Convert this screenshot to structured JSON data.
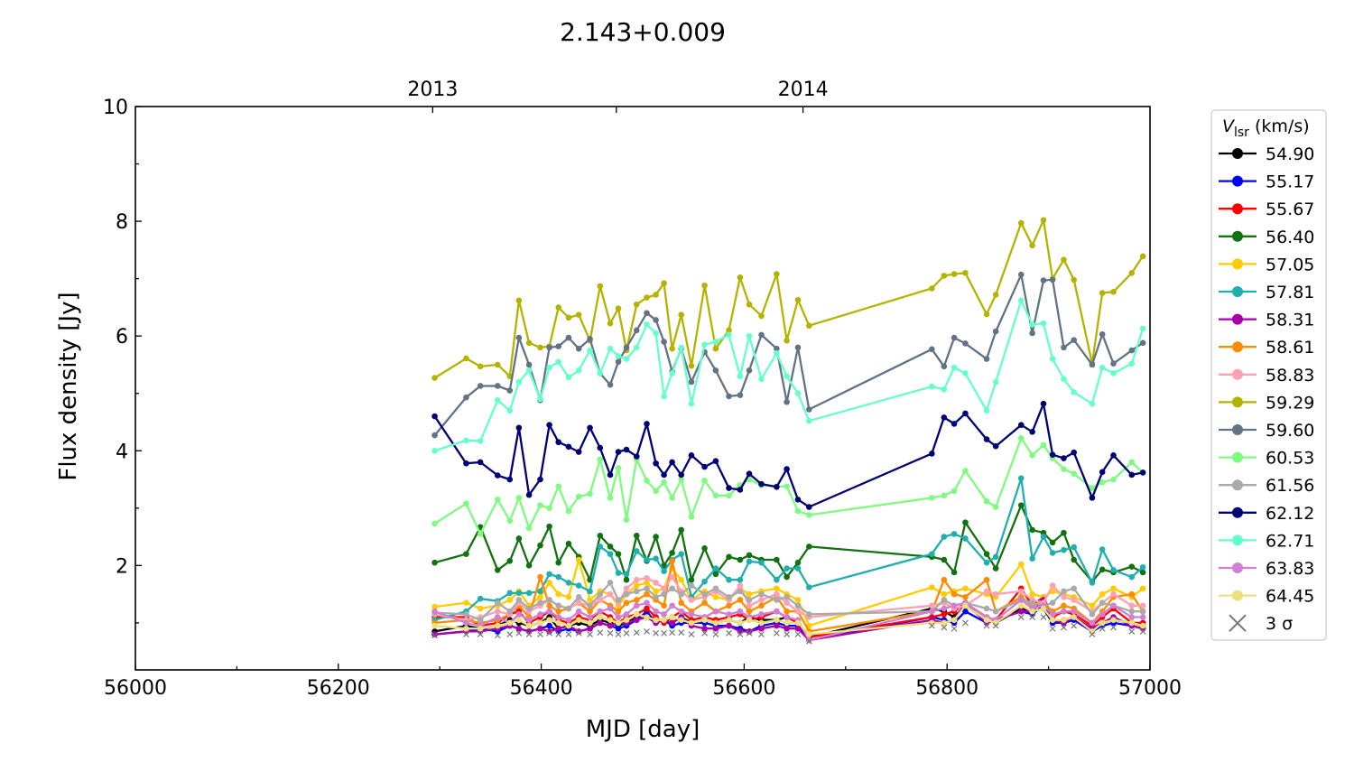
{
  "chart_data": {
    "type": "line",
    "title": "2.143+0.009",
    "xlabel": "MJD [day]",
    "ylabel": "Flux density [Jy]",
    "xlim": [
      56000,
      57000
    ],
    "ylim": [
      0.18,
      10
    ],
    "xticks": [
      56000,
      56200,
      56400,
      56600,
      56800,
      57000
    ],
    "xtick_labels": [
      "56000",
      "56200",
      "56400",
      "56600",
      "56800",
      "57000"
    ],
    "yticks": [
      2,
      4,
      6,
      8,
      10
    ],
    "ytick_labels": [
      "2",
      "4",
      "6",
      "8",
      "10"
    ],
    "top_axis": {
      "ticks": [
        56293,
        56474,
        56658
      ],
      "labels": [
        "2013",
        "",
        "2014"
      ]
    },
    "grid": false,
    "legend": {
      "title_main": "V",
      "title_sub": "lsr",
      "title_rest": " (km/s)",
      "placement": "outside-right"
    },
    "x": [
      56295,
      56326,
      56340,
      56357,
      56369,
      56378,
      56388,
      56399,
      56408,
      56417,
      56427,
      56437,
      56448,
      56458,
      56468,
      56476,
      56484,
      56494,
      56504,
      56513,
      56521,
      56529,
      56538,
      56548,
      56561,
      56572,
      56585,
      56596,
      56605,
      56617,
      56632,
      56642,
      56653,
      56664,
      56785,
      56797,
      56807,
      56818,
      56839,
      56848,
      56873,
      56884,
      56895,
      56904,
      56915,
      56925,
      56943,
      56953,
      56964,
      56982,
      56993
    ],
    "series": [
      {
        "name": "54.90",
        "color": "#000000",
        "values": [
          0.85,
          0.95,
          0.9,
          0.95,
          1.05,
          1.0,
          0.95,
          1.0,
          1.1,
          0.9,
          0.95,
          1.0,
          0.95,
          1.05,
          1.0,
          0.95,
          1.0,
          1.1,
          1.15,
          1.05,
          1.05,
          1.0,
          1.1,
          1.0,
          1.05,
          1.0,
          1.05,
          1.0,
          1.1,
          1.05,
          1.05,
          1.1,
          1.0,
          0.75,
          1.25,
          1.2,
          1.1,
          1.3,
          1.05,
          1.0,
          1.25,
          1.2,
          1.25,
          1.0,
          1.05,
          1.1,
          0.9,
          1.0,
          1.05,
          1.0,
          0.95
        ]
      },
      {
        "name": "55.17",
        "color": "#0000ff",
        "values": [
          0.8,
          0.85,
          0.9,
          0.85,
          0.95,
          0.9,
          0.85,
          0.9,
          0.95,
          0.85,
          0.9,
          0.85,
          0.9,
          1.0,
          0.95,
          0.9,
          0.95,
          1.05,
          1.2,
          1.0,
          1.05,
          0.95,
          1.0,
          1.0,
          1.0,
          0.95,
          0.95,
          0.9,
          0.85,
          0.95,
          1.0,
          0.95,
          0.95,
          0.7,
          1.1,
          1.05,
          1.0,
          1.2,
          1.0,
          1.05,
          1.2,
          1.15,
          1.3,
          1.0,
          1.0,
          1.05,
          0.85,
          0.95,
          1.0,
          0.95,
          0.9
        ]
      },
      {
        "name": "55.67",
        "color": "#ff0000",
        "values": [
          1.1,
          1.1,
          0.95,
          1.0,
          1.15,
          1.2,
          1.0,
          1.1,
          1.2,
          1.05,
          1.0,
          1.1,
          1.05,
          1.2,
          1.1,
          1.0,
          1.1,
          1.15,
          1.25,
          1.1,
          1.0,
          1.1,
          1.2,
          1.05,
          1.1,
          1.05,
          1.1,
          1.15,
          1.05,
          1.1,
          1.2,
          1.1,
          1.0,
          0.75,
          1.1,
          1.15,
          1.2,
          1.35,
          1.1,
          1.05,
          1.6,
          1.3,
          1.45,
          1.1,
          1.2,
          1.15,
          0.95,
          1.1,
          1.25,
          1.0,
          1.0
        ]
      },
      {
        "name": "56.40",
        "color": "#127212",
        "values": [
          2.05,
          2.2,
          2.67,
          1.92,
          2.08,
          2.47,
          2.0,
          2.35,
          2.68,
          2.05,
          2.38,
          2.15,
          1.75,
          2.52,
          2.33,
          2.2,
          1.75,
          2.52,
          2.08,
          2.5,
          2.0,
          2.22,
          2.62,
          1.75,
          2.3,
          1.85,
          2.15,
          2.1,
          2.18,
          2.1,
          2.1,
          1.8,
          2.05,
          2.33,
          2.15,
          2.1,
          1.88,
          2.75,
          2.2,
          1.95,
          3.05,
          2.62,
          2.57,
          2.4,
          2.57,
          2.1,
          1.72,
          1.93,
          1.88,
          1.98,
          1.88
        ]
      },
      {
        "name": "57.05",
        "color": "#ffcc00",
        "values": [
          1.28,
          1.35,
          1.25,
          1.3,
          1.4,
          1.55,
          1.3,
          1.45,
          1.7,
          1.5,
          1.45,
          2.1,
          1.4,
          1.55,
          1.5,
          1.3,
          1.5,
          1.65,
          1.7,
          1.55,
          1.6,
          1.95,
          1.75,
          1.4,
          1.55,
          1.45,
          1.4,
          1.6,
          1.5,
          1.55,
          1.6,
          1.5,
          1.4,
          0.95,
          1.62,
          1.5,
          1.55,
          1.6,
          1.5,
          1.45,
          2.02,
          1.5,
          1.45,
          1.55,
          1.5,
          1.45,
          1.3,
          1.5,
          1.6,
          1.45,
          1.6
        ]
      },
      {
        "name": "57.81",
        "color": "#1fb0ae",
        "values": [
          1.05,
          1.2,
          1.42,
          1.38,
          1.52,
          1.52,
          1.52,
          1.55,
          1.85,
          1.8,
          1.7,
          1.65,
          1.55,
          2.33,
          2.2,
          1.87,
          1.85,
          2.25,
          2.1,
          2.12,
          1.9,
          2.1,
          2.2,
          1.45,
          1.72,
          1.95,
          1.75,
          1.75,
          2.07,
          2.05,
          1.75,
          1.95,
          1.95,
          1.62,
          2.2,
          2.5,
          2.55,
          2.47,
          2.05,
          2.15,
          3.52,
          2.12,
          2.5,
          2.22,
          2.27,
          2.32,
          1.7,
          2.28,
          1.92,
          1.8,
          1.97
        ]
      },
      {
        "name": "58.31",
        "color": "#aa00aa",
        "values": [
          0.8,
          0.85,
          0.85,
          0.9,
          0.95,
          0.9,
          0.85,
          0.9,
          0.85,
          0.9,
          0.95,
          0.85,
          0.9,
          1.0,
          0.95,
          1.0,
          1.0,
          1.05,
          1.1,
          1.0,
          1.05,
          1.0,
          1.1,
          0.95,
          0.9,
          0.9,
          0.95,
          0.85,
          0.85,
          0.9,
          0.95,
          0.9,
          0.9,
          0.7,
          1.05,
          1.0,
          1.05,
          1.35,
          1.0,
          1.05,
          1.2,
          1.2,
          1.4,
          1.05,
          1.0,
          1.1,
          0.9,
          1.0,
          1.1,
          0.95,
          0.9
        ]
      },
      {
        "name": "58.61",
        "color": "#ff8c00",
        "values": [
          1.0,
          1.05,
          1.0,
          1.05,
          1.15,
          1.3,
          1.1,
          1.8,
          1.3,
          1.2,
          1.25,
          1.35,
          1.2,
          1.4,
          1.3,
          1.2,
          1.35,
          1.4,
          1.5,
          1.4,
          1.3,
          2.08,
          1.35,
          1.2,
          1.35,
          1.2,
          1.3,
          1.4,
          1.2,
          1.3,
          1.45,
          1.2,
          1.2,
          0.85,
          1.2,
          1.75,
          1.5,
          1.45,
          1.75,
          1.2,
          1.45,
          1.3,
          1.35,
          1.2,
          1.3,
          1.25,
          1.0,
          1.2,
          1.45,
          1.5,
          1.2
        ]
      },
      {
        "name": "58.83",
        "color": "#ffa0b4",
        "values": [
          1.15,
          1.05,
          1.1,
          1.2,
          1.15,
          1.35,
          1.2,
          1.3,
          1.4,
          1.3,
          1.25,
          1.35,
          1.3,
          1.4,
          1.5,
          1.35,
          1.6,
          1.75,
          1.78,
          1.7,
          1.6,
          1.8,
          1.55,
          1.4,
          1.45,
          1.55,
          1.4,
          1.65,
          1.3,
          1.4,
          1.5,
          1.35,
          1.2,
          1.1,
          1.3,
          1.35,
          1.25,
          1.3,
          1.55,
          1.5,
          1.55,
          1.4,
          1.35,
          1.65,
          1.45,
          1.4,
          1.2,
          1.35,
          1.5,
          1.3,
          1.3
        ]
      },
      {
        "name": "59.29",
        "color": "#b4b400",
        "values": [
          5.27,
          5.61,
          5.47,
          5.5,
          5.3,
          6.62,
          5.88,
          5.8,
          5.82,
          6.5,
          6.32,
          6.37,
          5.92,
          6.87,
          6.22,
          6.48,
          5.75,
          6.55,
          6.67,
          6.72,
          6.92,
          5.78,
          6.37,
          5.48,
          6.88,
          5.78,
          6.1,
          7.02,
          6.55,
          6.35,
          7.08,
          5.92,
          6.63,
          6.18,
          6.83,
          7.05,
          7.08,
          7.1,
          6.38,
          6.72,
          7.97,
          7.58,
          8.02,
          7.0,
          7.33,
          6.98,
          5.52,
          6.75,
          6.77,
          7.1,
          7.39
        ]
      },
      {
        "name": "59.60",
        "color": "#627386",
        "values": [
          4.27,
          4.93,
          5.13,
          5.13,
          5.05,
          5.97,
          5.5,
          4.88,
          5.8,
          5.82,
          5.97,
          5.78,
          5.95,
          5.35,
          5.15,
          5.55,
          5.8,
          6.1,
          6.4,
          6.28,
          5.9,
          5.38,
          5.78,
          5.2,
          5.72,
          5.4,
          4.95,
          4.97,
          5.4,
          6.02,
          5.78,
          4.85,
          5.8,
          4.72,
          5.77,
          5.47,
          5.97,
          5.87,
          5.6,
          6.08,
          7.07,
          6.05,
          6.97,
          6.98,
          5.8,
          5.93,
          5.5,
          6.03,
          5.52,
          5.75,
          5.88
        ]
      },
      {
        "name": "60.53",
        "color": "#80fa80",
        "values": [
          2.73,
          3.08,
          2.55,
          3.15,
          2.78,
          3.18,
          2.65,
          3.05,
          3.0,
          3.38,
          2.95,
          3.2,
          3.25,
          3.85,
          3.18,
          3.7,
          2.8,
          3.85,
          3.48,
          3.3,
          3.45,
          3.18,
          3.5,
          2.85,
          3.48,
          3.22,
          3.22,
          3.4,
          3.5,
          3.4,
          3.38,
          3.38,
          2.95,
          2.88,
          3.18,
          3.22,
          3.3,
          3.65,
          3.12,
          3.02,
          4.22,
          3.92,
          4.1,
          3.87,
          3.68,
          3.6,
          3.35,
          3.45,
          3.5,
          3.8,
          3.62
        ]
      },
      {
        "name": "61.56",
        "color": "#aaaaaa",
        "values": [
          1.18,
          1.15,
          1.05,
          1.35,
          1.2,
          1.4,
          1.25,
          1.35,
          1.4,
          1.3,
          1.25,
          1.45,
          1.3,
          1.5,
          1.7,
          1.4,
          1.5,
          1.55,
          1.6,
          1.45,
          1.5,
          1.6,
          1.5,
          1.65,
          1.5,
          1.6,
          1.45,
          1.55,
          1.4,
          1.5,
          1.4,
          1.45,
          1.3,
          1.15,
          1.2,
          1.4,
          1.3,
          1.35,
          1.25,
          1.2,
          1.4,
          1.35,
          1.3,
          1.35,
          1.55,
          1.6,
          1.15,
          1.35,
          1.3,
          1.2,
          1.2
        ]
      },
      {
        "name": "62.12",
        "color": "#000075",
        "values": [
          4.6,
          3.78,
          3.8,
          3.57,
          3.5,
          4.4,
          3.23,
          3.5,
          4.45,
          4.15,
          4.07,
          3.98,
          4.4,
          4.05,
          3.58,
          3.98,
          4.02,
          3.9,
          4.47,
          3.78,
          3.58,
          3.8,
          3.58,
          3.92,
          3.72,
          3.82,
          3.35,
          3.32,
          3.6,
          3.42,
          3.37,
          3.68,
          3.15,
          3.02,
          3.95,
          4.58,
          4.47,
          4.65,
          4.2,
          4.08,
          4.45,
          4.33,
          4.82,
          3.93,
          3.87,
          3.97,
          3.18,
          3.63,
          3.92,
          3.58,
          3.62
        ]
      },
      {
        "name": "62.71",
        "color": "#66ffcc",
        "values": [
          4.0,
          4.18,
          4.17,
          4.88,
          4.7,
          5.2,
          5.4,
          4.9,
          5.45,
          5.55,
          5.28,
          5.4,
          5.75,
          5.35,
          5.78,
          5.65,
          5.6,
          5.8,
          6.2,
          6.05,
          4.95,
          5.35,
          5.8,
          4.82,
          5.85,
          5.9,
          6.02,
          5.3,
          6.0,
          5.25,
          5.7,
          5.3,
          5.0,
          4.52,
          5.12,
          5.07,
          5.45,
          5.35,
          4.7,
          5.2,
          6.62,
          6.2,
          6.22,
          5.6,
          5.25,
          5.02,
          4.82,
          5.45,
          5.35,
          5.52,
          6.13
        ]
      },
      {
        "name": "63.83",
        "color": "#d080d0",
        "values": [
          1.2,
          1.0,
          0.95,
          1.1,
          1.0,
          1.15,
          1.05,
          1.15,
          1.2,
          1.1,
          1.05,
          1.2,
          1.1,
          1.2,
          1.25,
          1.1,
          1.15,
          1.3,
          1.35,
          1.2,
          1.15,
          1.3,
          1.2,
          1.15,
          1.1,
          1.2,
          1.15,
          1.2,
          1.1,
          1.15,
          1.2,
          1.1,
          1.05,
          0.7,
          1.2,
          1.25,
          1.3,
          1.35,
          1.1,
          1.05,
          1.4,
          1.25,
          1.3,
          1.15,
          1.2,
          1.2,
          1.0,
          1.15,
          1.3,
          1.1,
          1.1
        ]
      },
      {
        "name": "64.45",
        "color": "#ece07a",
        "values": [
          0.95,
          0.9,
          0.9,
          0.95,
          1.0,
          1.05,
          0.95,
          1.0,
          1.05,
          1.0,
          0.95,
          1.05,
          1.0,
          1.1,
          1.05,
          1.0,
          1.05,
          1.15,
          1.1,
          1.05,
          1.05,
          1.1,
          1.05,
          1.0,
          1.05,
          1.0,
          1.05,
          1.0,
          1.05,
          1.0,
          1.05,
          1.0,
          1.0,
          0.8,
          1.0,
          1.0,
          1.05,
          1.3,
          1.05,
          1.0,
          1.3,
          1.2,
          1.25,
          1.05,
          1.05,
          1.1,
          0.85,
          1.0,
          1.05,
          1.0,
          0.95
        ]
      },
      {
        "name": "3 σ",
        "color": "#777777",
        "marker": "x",
        "values": [
          0.78,
          0.8,
          0.8,
          0.78,
          0.8,
          0.82,
          0.8,
          0.8,
          0.82,
          0.8,
          0.8,
          0.82,
          0.8,
          0.83,
          0.82,
          0.8,
          0.82,
          0.83,
          0.85,
          0.82,
          0.82,
          0.83,
          0.83,
          0.8,
          0.82,
          0.8,
          0.82,
          0.8,
          0.82,
          0.8,
          0.82,
          0.8,
          0.8,
          0.68,
          0.95,
          0.92,
          0.9,
          1.0,
          0.95,
          0.95,
          1.1,
          1.1,
          1.1,
          0.9,
          0.92,
          0.95,
          0.8,
          0.9,
          0.92,
          0.85,
          0.85
        ]
      }
    ]
  }
}
